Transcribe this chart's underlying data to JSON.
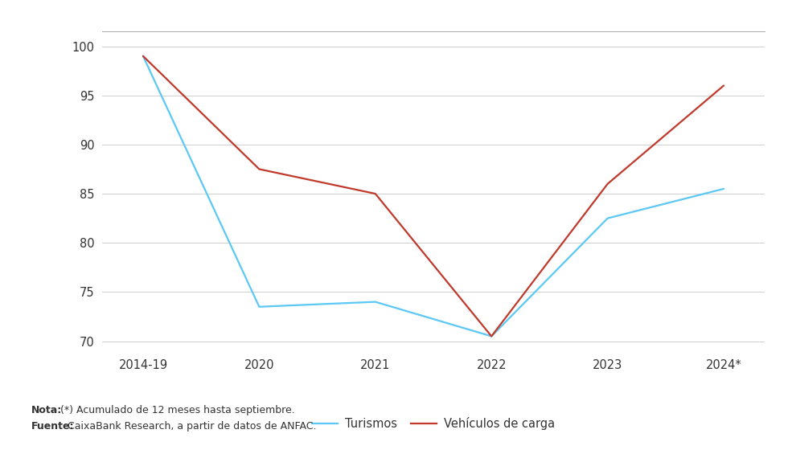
{
  "x_labels": [
    "2014-19",
    "2020",
    "2021",
    "2022",
    "2023",
    "2024*"
  ],
  "x_positions": [
    0,
    1,
    2,
    3,
    4,
    5
  ],
  "turismos": [
    99.0,
    73.5,
    74.0,
    70.5,
    82.5,
    85.5
  ],
  "vehiculos_carga": [
    99.0,
    87.5,
    85.0,
    70.5,
    86.0,
    96.0
  ],
  "turismos_color": "#5bc8f5",
  "carga_color": "#c0392b",
  "turismos_label": "Turismos",
  "carga_label": "Vehículos de carga",
  "ylim": [
    69.0,
    101.5
  ],
  "yticks": [
    70,
    75,
    80,
    85,
    90,
    95,
    100
  ],
  "line_width": 1.6,
  "background_color": "#ffffff",
  "grid_color": "#d0d0d0",
  "tick_color": "#333333",
  "tick_fontsize": 10.5
}
